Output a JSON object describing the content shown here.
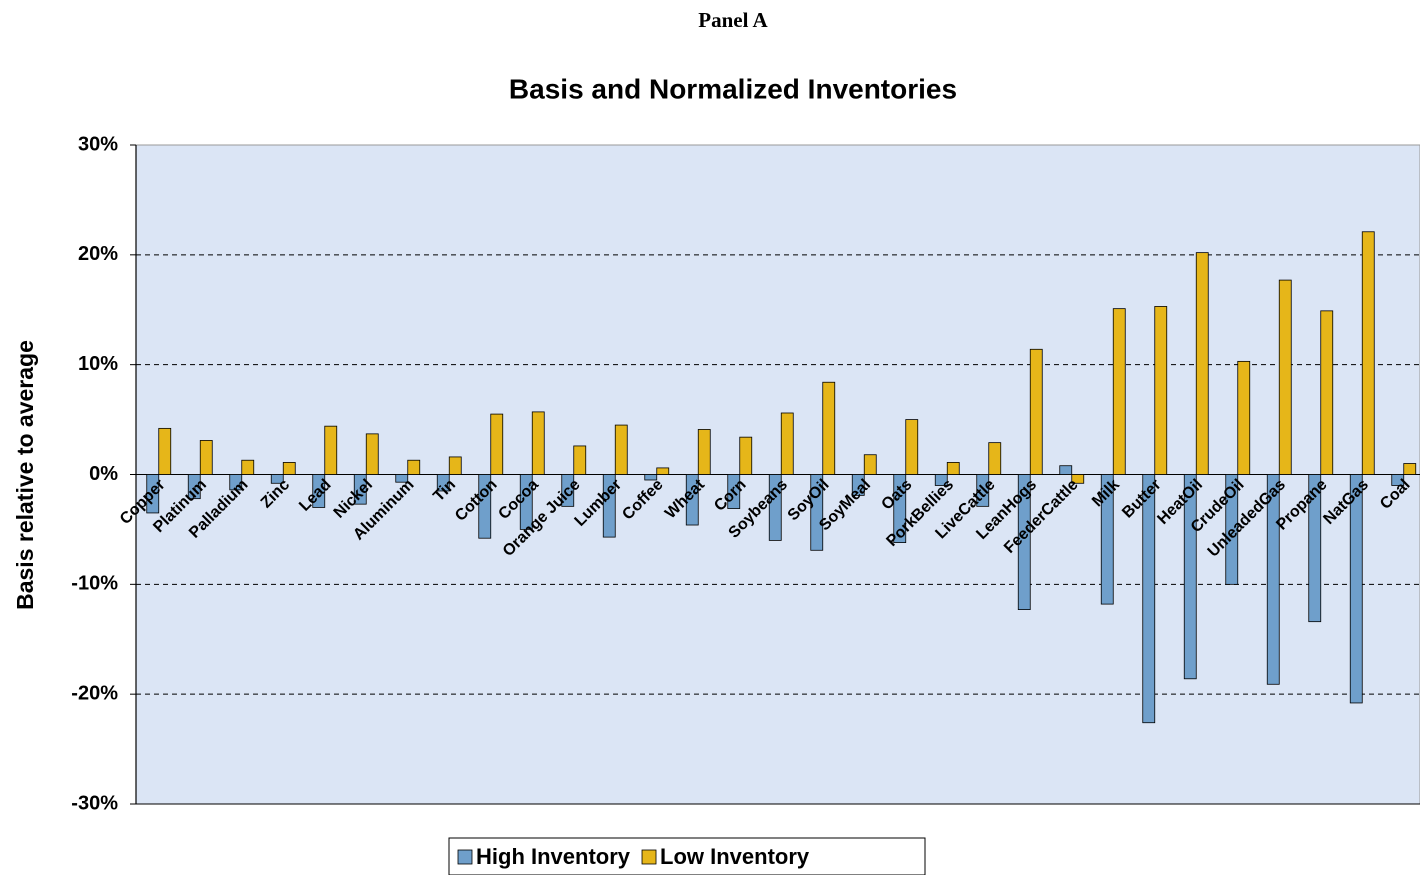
{
  "header": {
    "panel": "Panel A"
  },
  "chart_data": {
    "type": "bar",
    "title": "Basis and Normalized Inventories",
    "y_label": "Basis relative to average",
    "categories": [
      "Copper",
      "Platinum",
      "Palladium",
      "Zinc",
      "Lead",
      "Nickel",
      "Aluminum",
      "Tin",
      "Cotton",
      "Cocoa",
      "Orange Juice",
      "Lumber",
      "Coffee",
      "Wheat",
      "Corn",
      "Soybeans",
      "SoyOil",
      "SoyMeal",
      "Oats",
      "PorkBellies",
      "LiveCattle",
      "LeanHogs",
      "FeederCattle",
      "Milk",
      "Butter",
      "HeatOil",
      "CrudeOil",
      "UnleadedGas",
      "Propane",
      "NatGas",
      "Coal"
    ],
    "series": [
      {
        "name": "High Inventory",
        "color": "#6f9fcb",
        "values": [
          -3.5,
          -2.2,
          -1.4,
          -0.8,
          -3.0,
          -2.7,
          -0.7,
          -1.5,
          -5.8,
          -5.0,
          -2.9,
          -5.7,
          -0.5,
          -4.6,
          -3.1,
          -6.0,
          -6.9,
          -1.9,
          -6.2,
          -1.0,
          -2.9,
          -12.3,
          0.8,
          -11.8,
          -22.6,
          -18.6,
          -10.0,
          -19.1,
          -13.4,
          -20.8,
          -1.0
        ]
      },
      {
        "name": "Low Inventory",
        "color": "#e6b619",
        "values": [
          4.2,
          3.1,
          1.3,
          1.1,
          4.4,
          3.7,
          1.3,
          1.6,
          5.5,
          5.7,
          2.6,
          4.5,
          0.6,
          4.1,
          3.4,
          5.6,
          8.4,
          1.8,
          5.0,
          1.1,
          2.9,
          11.4,
          -0.8,
          15.1,
          15.3,
          20.2,
          10.3,
          17.7,
          14.9,
          22.1,
          1.0
        ]
      }
    ],
    "ylim": [
      -30,
      30
    ],
    "yticks": [
      {
        "value": -30,
        "label": "-30%"
      },
      {
        "value": -20,
        "label": "-20%"
      },
      {
        "value": -10,
        "label": "-10%"
      },
      {
        "value": 0,
        "label": "0%"
      },
      {
        "value": 10,
        "label": "10%"
      },
      {
        "value": 20,
        "label": "20%"
      },
      {
        "value": 30,
        "label": "30%"
      }
    ],
    "grid": true,
    "legend": "bottom"
  }
}
